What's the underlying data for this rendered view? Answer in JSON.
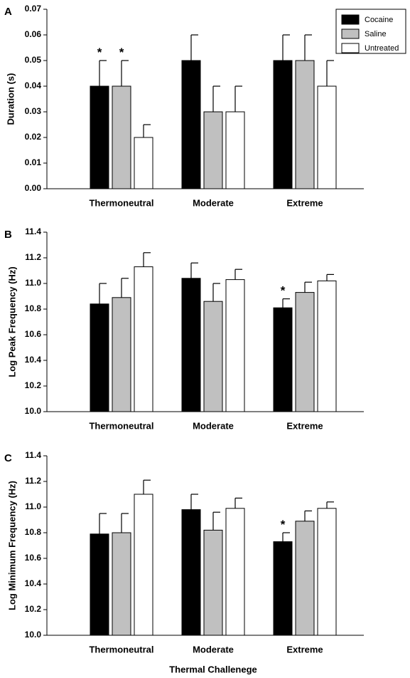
{
  "chart_data": [
    {
      "panel_label": "A",
      "type": "bar",
      "categories": [
        "Thermoneutral",
        "Moderate",
        "Extreme"
      ],
      "ylabel": "Duration (s)",
      "ylim": [
        0,
        0.07
      ],
      "yticks": [
        "0.00",
        "0.01",
        "0.02",
        "0.03",
        "0.04",
        "0.05",
        "0.06",
        "0.07"
      ],
      "legend": "top-right",
      "grid": false,
      "series": [
        {
          "name": "Cocaine",
          "values": [
            0.04,
            0.05,
            0.05
          ],
          "errors": [
            0.01,
            0.01,
            0.01
          ]
        },
        {
          "name": "Saline",
          "values": [
            0.04,
            0.03,
            0.05
          ],
          "errors": [
            0.01,
            0.01,
            0.01
          ]
        },
        {
          "name": "Untreated",
          "values": [
            0.02,
            0.03,
            0.04
          ],
          "errors": [
            0.005,
            0.01,
            0.01
          ]
        }
      ],
      "significance": [
        {
          "category": "Thermoneutral",
          "series": "Cocaine",
          "mark": "*"
        },
        {
          "category": "Thermoneutral",
          "series": "Saline",
          "mark": "*"
        }
      ]
    },
    {
      "panel_label": "B",
      "type": "bar",
      "categories": [
        "Thermoneutral",
        "Moderate",
        "Extreme"
      ],
      "ylabel": "Log Peak Frequency (Hz)",
      "ylim": [
        10.0,
        11.4
      ],
      "yticks": [
        "10.0",
        "10.2",
        "10.4",
        "10.6",
        "10.8",
        "11.0",
        "11.2",
        "11.4"
      ],
      "grid": false,
      "series": [
        {
          "name": "Cocaine",
          "values": [
            10.84,
            11.04,
            10.81
          ],
          "errors": [
            0.16,
            0.12,
            0.07
          ]
        },
        {
          "name": "Saline",
          "values": [
            10.89,
            10.86,
            10.93
          ],
          "errors": [
            0.15,
            0.14,
            0.08
          ]
        },
        {
          "name": "Untreated",
          "values": [
            11.13,
            11.03,
            11.02
          ],
          "errors": [
            0.11,
            0.08,
            0.05
          ]
        }
      ],
      "significance": [
        {
          "category": "Extreme",
          "series": "Cocaine",
          "mark": "*"
        }
      ]
    },
    {
      "panel_label": "C",
      "type": "bar",
      "categories": [
        "Thermoneutral",
        "Moderate",
        "Extreme"
      ],
      "ylabel": "Log Minimum Frequency (Hz)",
      "xlabel": "Thermal Challenege",
      "ylim": [
        10.0,
        11.4
      ],
      "yticks": [
        "10.0",
        "10.2",
        "10.4",
        "10.6",
        "10.8",
        "11.0",
        "11.2",
        "11.4"
      ],
      "grid": false,
      "series": [
        {
          "name": "Cocaine",
          "values": [
            10.79,
            10.98,
            10.73
          ],
          "errors": [
            0.16,
            0.12,
            0.07
          ]
        },
        {
          "name": "Saline",
          "values": [
            10.8,
            10.82,
            10.89
          ],
          "errors": [
            0.15,
            0.14,
            0.08
          ]
        },
        {
          "name": "Untreated",
          "values": [
            11.1,
            10.99,
            10.99
          ],
          "errors": [
            0.11,
            0.08,
            0.05
          ]
        }
      ],
      "significance": [
        {
          "category": "Extreme",
          "series": "Cocaine",
          "mark": "*"
        }
      ]
    }
  ],
  "colors": {
    "Cocaine": "#000000",
    "Saline": "#c0c0c0",
    "Untreated": "#ffffff"
  }
}
